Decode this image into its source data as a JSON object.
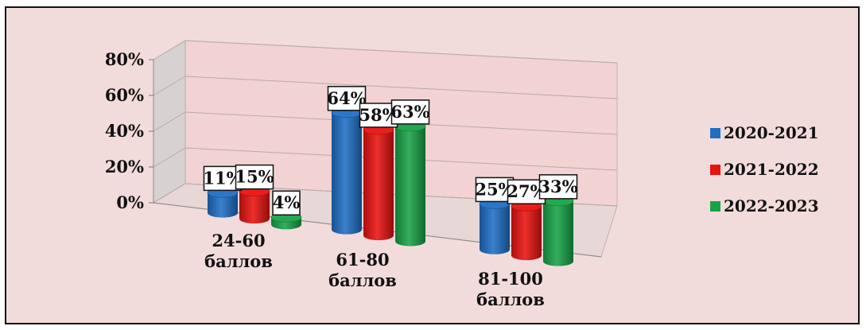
{
  "chart_data": {
    "type": "bar",
    "categories": [
      [
        "24-60",
        "баллов"
      ],
      [
        "61-80",
        "баллов"
      ],
      [
        "81-100",
        "баллов"
      ]
    ],
    "series": [
      {
        "name": "2020-2021",
        "color": "#1f6fc5",
        "values": [
          11,
          64,
          25
        ],
        "labels": [
          "11%",
          "64%",
          "25%"
        ]
      },
      {
        "name": "2021-2022",
        "color": "#e8130f",
        "values": [
          15,
          58,
          27
        ],
        "labels": [
          "15%",
          "58%",
          "27%"
        ]
      },
      {
        "name": "2022-2023",
        "color": "#18a348",
        "values": [
          4,
          63,
          33
        ],
        "labels": [
          "4%",
          "63%",
          "33%"
        ]
      }
    ],
    "y_ticks": [
      "0%",
      "20%",
      "40%",
      "60%",
      "80%"
    ],
    "ylim": [
      0,
      80
    ],
    "grid": true,
    "legend_position": "right",
    "style": "3d-cylinder"
  }
}
